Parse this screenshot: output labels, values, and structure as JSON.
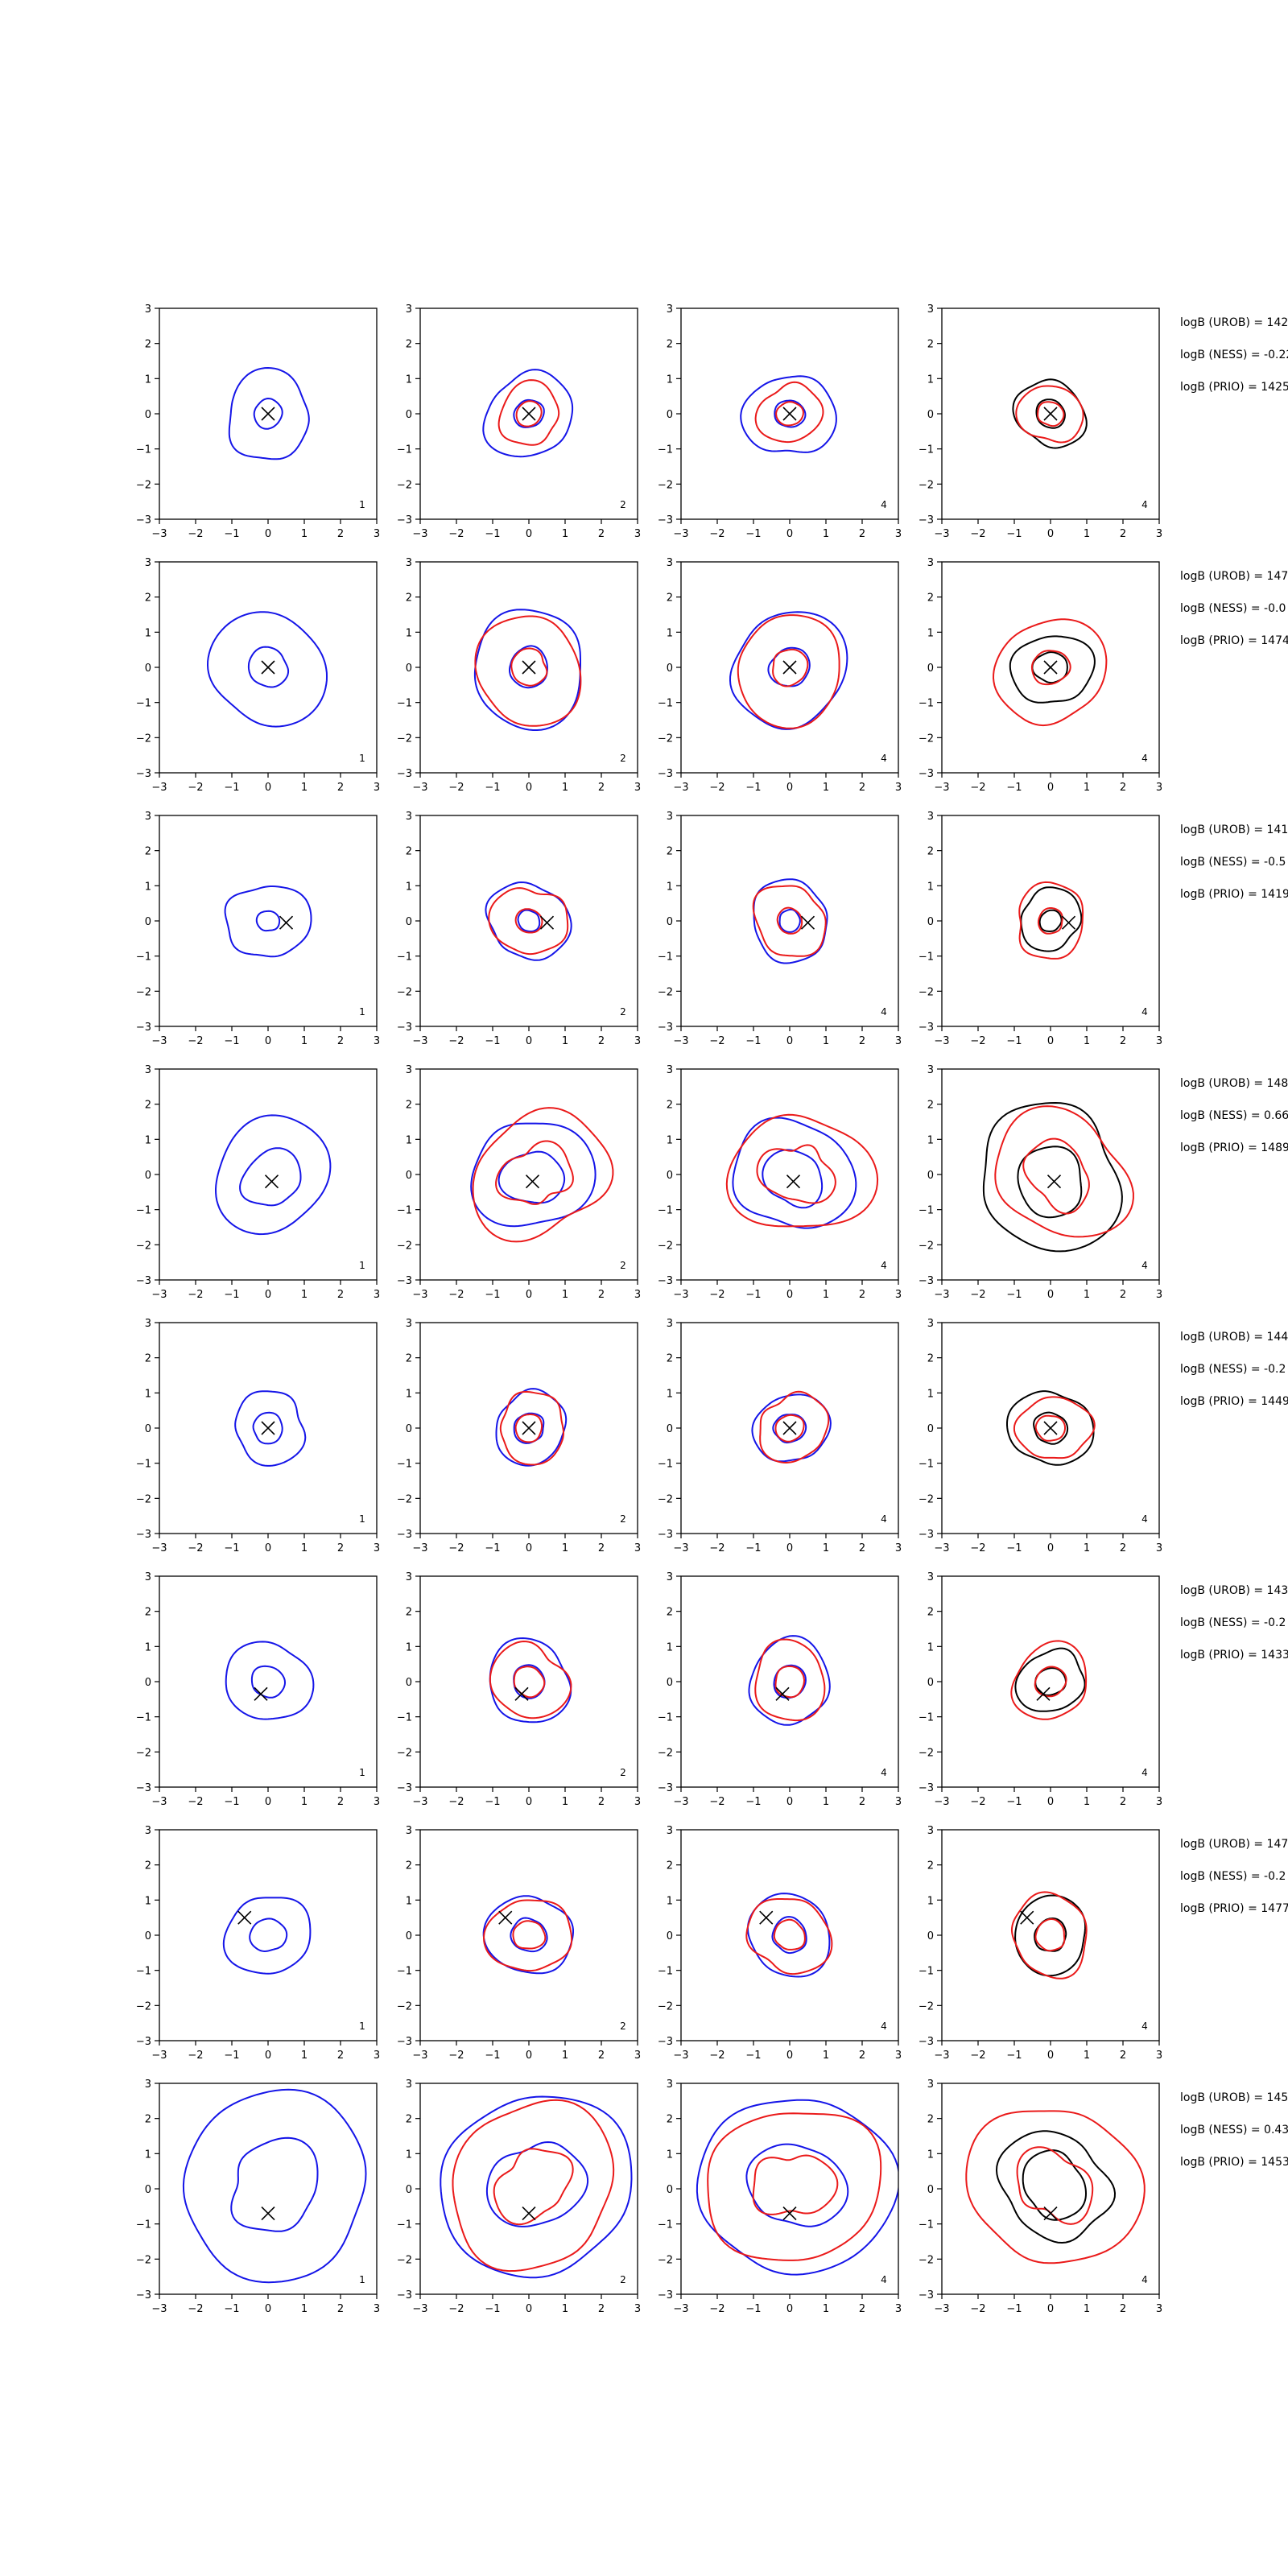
{
  "figure": {
    "background": "#ffffff",
    "colors": {
      "blue": "#1515e8",
      "red": "#ea1a1a",
      "black": "#000000"
    },
    "rows": [
      {
        "annotations": [
          "logB (UROB) = 142",
          "logB (NESS) = -0.22",
          "logB (PRIO) = 1425"
        ]
      },
      {
        "annotations": [
          "logB (UROB) = 147",
          "logB (NESS) = -0.0",
          "logB (PRIO) = 1474"
        ]
      },
      {
        "annotations": [
          "logB (UROB) = 141",
          "logB (NESS) = -0.5",
          "logB (PRIO) = 1419"
        ]
      },
      {
        "annotations": [
          "logB (UROB) = 148",
          "logB (NESS) = 0.66",
          "logB (PRIO) = 1489"
        ]
      },
      {
        "annotations": [
          "logB (UROB) = 144",
          "logB (NESS) = -0.2",
          "logB (PRIO) = 1449"
        ]
      },
      {
        "annotations": [
          "logB (UROB) = 143",
          "logB (NESS) = -0.2",
          "logB (PRIO) = 1433"
        ]
      },
      {
        "annotations": [
          "logB (UROB) = 147",
          "logB (NESS) = -0.2",
          "logB (PRIO) = 1477"
        ]
      },
      {
        "annotations": [
          "logB (UROB) = 145",
          "logB (NESS) = 0.43",
          "logB (PRIO) = 1453"
        ]
      }
    ]
  },
  "chart_data": {
    "type": "contour",
    "grid": false,
    "xlim": [
      -3,
      3
    ],
    "ylim": [
      -3,
      3
    ],
    "xticks": [
      -3,
      -2,
      -1,
      0,
      1,
      2,
      3
    ],
    "yticks": [
      -3,
      -2,
      -1,
      0,
      1,
      2,
      3
    ],
    "panel_labels": [
      "1",
      "2",
      "4",
      "4"
    ],
    "panel_lines": [
      [
        "blue"
      ],
      [
        "blue",
        "red"
      ],
      [
        "blue",
        "red"
      ],
      [
        "black",
        "red"
      ]
    ],
    "markers": [
      {
        "x": 0.0,
        "y": 0.0
      },
      {
        "x": 0.0,
        "y": 0.0
      },
      {
        "x": 0.5,
        "y": -0.05
      },
      {
        "x": 0.1,
        "y": -0.2
      },
      {
        "x": 0.0,
        "y": 0.0
      },
      {
        "x": -0.2,
        "y": -0.35
      },
      {
        "x": -0.65,
        "y": 0.5
      },
      {
        "x": 0.0,
        "y": -0.7
      }
    ],
    "contours": [
      {
        "blue": [
          {
            "c": [
              0,
              0
            ],
            "r": 0.4
          },
          {
            "c": [
              0,
              -0.05
            ],
            "r": 1.2,
            "w": 0.12
          }
        ],
        "red": [
          {
            "c": [
              0,
              0
            ],
            "r": 0.35
          },
          {
            "c": [
              0,
              0
            ],
            "r": 0.85,
            "w": 0.12
          }
        ],
        "black": [
          {
            "c": [
              0,
              0
            ],
            "r": 0.4
          },
          {
            "c": [
              0,
              0
            ],
            "r": 0.95,
            "w": 0.12
          }
        ]
      },
      {
        "blue": [
          {
            "c": [
              0,
              0
            ],
            "r": 0.55
          },
          {
            "c": [
              0,
              -0.05
            ],
            "r": 1.6,
            "w": 0.1
          }
        ],
        "red": [
          {
            "c": [
              0,
              0
            ],
            "r": 0.5
          },
          {
            "c": [
              0,
              -0.1
            ],
            "r": 1.5,
            "w": 0.1
          }
        ],
        "black": [
          {
            "c": [
              0,
              0
            ],
            "r": 0.45
          },
          {
            "c": [
              0.05,
              -0.05
            ],
            "r": 1.05,
            "w": 0.14
          }
        ]
      },
      {
        "blue": [
          {
            "c": [
              0,
              0
            ],
            "r": 0.3
          },
          {
            "c": [
              0,
              0
            ],
            "r": 1.1,
            "w": 0.12
          }
        ],
        "red": [
          {
            "c": [
              0,
              0
            ],
            "r": 0.35
          },
          {
            "c": [
              0,
              0
            ],
            "r": 1.0,
            "w": 0.14
          }
        ],
        "black": [
          {
            "c": [
              0,
              0
            ],
            "r": 0.3
          },
          {
            "c": [
              0,
              0.05
            ],
            "r": 0.85,
            "w": 0.12
          }
        ]
      },
      {
        "blue": [
          {
            "c": [
              0.1,
              -0.1
            ],
            "r": 0.8,
            "w": 0.15
          },
          {
            "c": [
              0.1,
              0
            ],
            "r": 1.6,
            "w": 0.12
          }
        ],
        "red": [
          {
            "c": [
              0.2,
              0
            ],
            "r": 0.9,
            "w": 0.25
          },
          {
            "c": [
              0.3,
              0
            ],
            "r": 1.8,
            "w": 0.18
          }
        ],
        "black": [
          {
            "c": [
              0,
              -0.2
            ],
            "r": 0.95,
            "w": 0.1
          },
          {
            "c": [
              0,
              -0.1
            ],
            "r": 2.0,
            "w": 0.12
          }
        ]
      },
      {
        "blue": [
          {
            "c": [
              0,
              0
            ],
            "r": 0.42
          },
          {
            "c": [
              0.05,
              0
            ],
            "r": 1.0,
            "w": 0.12
          }
        ],
        "red": [
          {
            "c": [
              0,
              0
            ],
            "r": 0.38
          },
          {
            "c": [
              0.1,
              0
            ],
            "r": 0.95,
            "w": 0.14
          }
        ],
        "black": [
          {
            "c": [
              0,
              0
            ],
            "r": 0.45
          },
          {
            "c": [
              0,
              0
            ],
            "r": 1.1,
            "w": 0.14
          }
        ]
      },
      {
        "blue": [
          {
            "c": [
              0,
              0
            ],
            "r": 0.45
          },
          {
            "c": [
              0,
              0
            ],
            "r": 1.15,
            "w": 0.1
          }
        ],
        "red": [
          {
            "c": [
              0,
              0
            ],
            "r": 0.42
          },
          {
            "c": [
              0,
              0
            ],
            "r": 1.05,
            "w": 0.14
          }
        ],
        "black": [
          {
            "c": [
              0,
              0
            ],
            "r": 0.4
          },
          {
            "c": [
              0,
              0
            ],
            "r": 0.9,
            "w": 0.12
          }
        ]
      },
      {
        "blue": [
          {
            "c": [
              0,
              0
            ],
            "r": 0.48
          },
          {
            "c": [
              0,
              0
            ],
            "r": 1.15,
            "w": 0.1
          }
        ],
        "red": [
          {
            "c": [
              0,
              0
            ],
            "r": 0.42
          },
          {
            "c": [
              0,
              0
            ],
            "r": 1.1,
            "w": 0.14
          }
        ],
        "black": [
          {
            "c": [
              0,
              0
            ],
            "r": 0.45
          },
          {
            "c": [
              0,
              0
            ],
            "r": 1.05,
            "w": 0.12
          }
        ]
      },
      {
        "blue": [
          {
            "c": [
              0.2,
              0.1
            ],
            "r": 1.25,
            "w": 0.18
          },
          {
            "c": [
              0.2,
              0.1
            ],
            "r": 2.6,
            "w": 0.08
          }
        ],
        "red": [
          {
            "c": [
              0.1,
              0.1
            ],
            "r": 1.0,
            "w": 0.28
          },
          {
            "c": [
              0.1,
              0.1
            ],
            "r": 2.3,
            "w": 0.12
          }
        ],
        "black": [
          {
            "c": [
              0.1,
              0.1
            ],
            "r": 0.9,
            "w": 0.18
          },
          {
            "c": [
              0.1,
              0.1
            ],
            "r": 1.5,
            "w": 0.15
          }
        ]
      }
    ]
  }
}
